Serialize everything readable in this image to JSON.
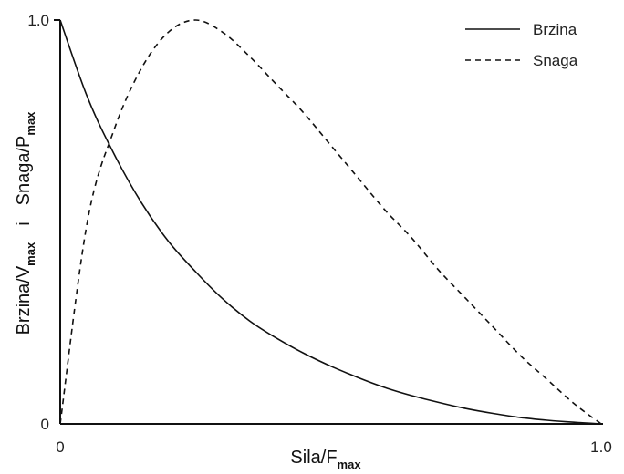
{
  "chart_data": {
    "type": "line",
    "title": "",
    "xlabel": {
      "main": "Sila/F",
      "sub": "max"
    },
    "ylabel": {
      "part1": "Brzina/V",
      "sub1": "max",
      "connector": "i",
      "part2": "Snaga/P",
      "sub2": "max"
    },
    "xlim": [
      0,
      1.0
    ],
    "ylim": [
      0,
      1.0
    ],
    "x_ticks": [
      "0",
      "1.0"
    ],
    "y_ticks": [
      "0",
      "1.0"
    ],
    "grid": false,
    "legend_position": "top-right",
    "series": [
      {
        "name": "Brzina",
        "style": "solid",
        "color": "#111111",
        "x": [
          0,
          0.05,
          0.1,
          0.15,
          0.2,
          0.25,
          0.3,
          0.35,
          0.4,
          0.45,
          0.5,
          0.55,
          0.6,
          0.65,
          0.7,
          0.75,
          0.8,
          0.85,
          0.9,
          0.95,
          1.0
        ],
        "y": [
          1.0,
          0.81,
          0.667,
          0.548,
          0.452,
          0.377,
          0.31,
          0.255,
          0.212,
          0.175,
          0.143,
          0.115,
          0.09,
          0.07,
          0.053,
          0.038,
          0.026,
          0.016,
          0.009,
          0.004,
          0.0
        ]
      },
      {
        "name": "Snaga",
        "style": "dashed",
        "color": "#111111",
        "x": [
          0,
          0.05,
          0.1,
          0.15,
          0.2,
          0.25,
          0.3,
          0.35,
          0.4,
          0.45,
          0.5,
          0.55,
          0.6,
          0.65,
          0.7,
          0.75,
          0.8,
          0.85,
          0.9,
          0.95,
          1.0
        ],
        "y": [
          0.0,
          0.5,
          0.73,
          0.88,
          0.97,
          1.0,
          0.97,
          0.91,
          0.84,
          0.77,
          0.69,
          0.61,
          0.53,
          0.46,
          0.38,
          0.31,
          0.24,
          0.17,
          0.11,
          0.05,
          0.0
        ]
      }
    ]
  }
}
